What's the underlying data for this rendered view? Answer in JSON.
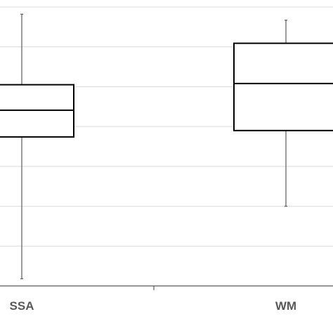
{
  "chart_data": {
    "type": "boxplot",
    "categories": [
      "SSA",
      "WM"
    ],
    "series": [
      {
        "category": "SSA",
        "min": 0.18,
        "q1": 3.74,
        "median": 4.41,
        "q3": 5.05,
        "max": 6.82
      },
      {
        "category": "WM",
        "min": 2.0,
        "q1": 3.9,
        "median": 5.08,
        "q3": 6.09,
        "max": 6.67
      }
    ],
    "ylim": [
      0,
      7
    ],
    "grid": true,
    "colors": {
      "box_stroke": "#000000",
      "whisker": "#595959",
      "grid": "#d9d9d9",
      "axis": "#595959"
    }
  }
}
